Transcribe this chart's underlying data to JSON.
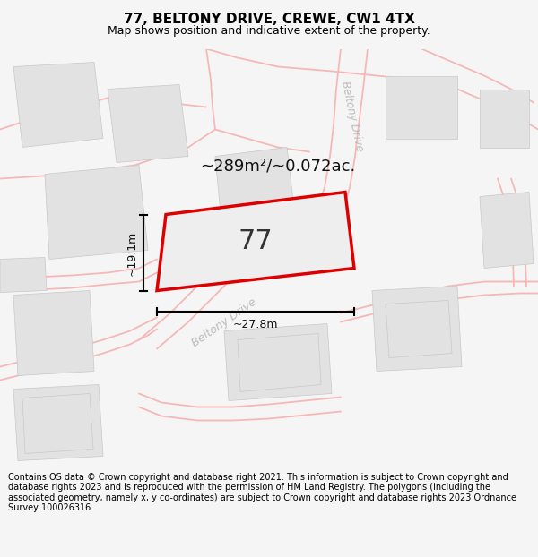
{
  "title": "77, BELTONY DRIVE, CREWE, CW1 4TX",
  "subtitle": "Map shows position and indicative extent of the property.",
  "footer": "Contains OS data © Crown copyright and database right 2021. This information is subject to Crown copyright and database rights 2023 and is reproduced with the permission of HM Land Registry. The polygons (including the associated geometry, namely x, y co-ordinates) are subject to Crown copyright and database rights 2023 Ordnance Survey 100026316.",
  "area_label": "~289m²/~0.072ac.",
  "plot_number": "77",
  "width_label": "~27.8m",
  "height_label": "~19.1m",
  "road_label_diag": "Beltony Drive",
  "road_label_vert": "Beltony Drive",
  "bg_color": "#f5f5f5",
  "map_bg": "#ffffff",
  "building_fill": "#e2e2e2",
  "road_line_color": "#f5b8b8",
  "plot_border_color": "#dd0000",
  "title_fontsize": 11,
  "subtitle_fontsize": 9,
  "footer_fontsize": 7.0
}
